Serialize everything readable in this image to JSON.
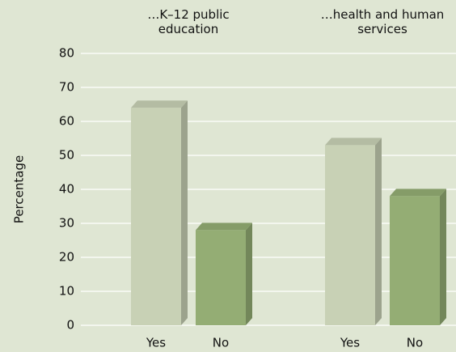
{
  "chart_data": {
    "type": "bar",
    "categories": [
      "…K–12 public education",
      "…health and human services"
    ],
    "series": [
      {
        "name": "Yes",
        "color": "#c8d1b5",
        "values": [
          64,
          53
        ]
      },
      {
        "name": "No",
        "color": "#94ad74",
        "values": [
          28,
          38
        ]
      }
    ],
    "y_label": "Percentage",
    "ylim": [
      0,
      80
    ],
    "yticks": [
      0,
      10,
      20,
      30,
      40,
      50,
      60,
      70,
      80
    ],
    "grid": true
  }
}
